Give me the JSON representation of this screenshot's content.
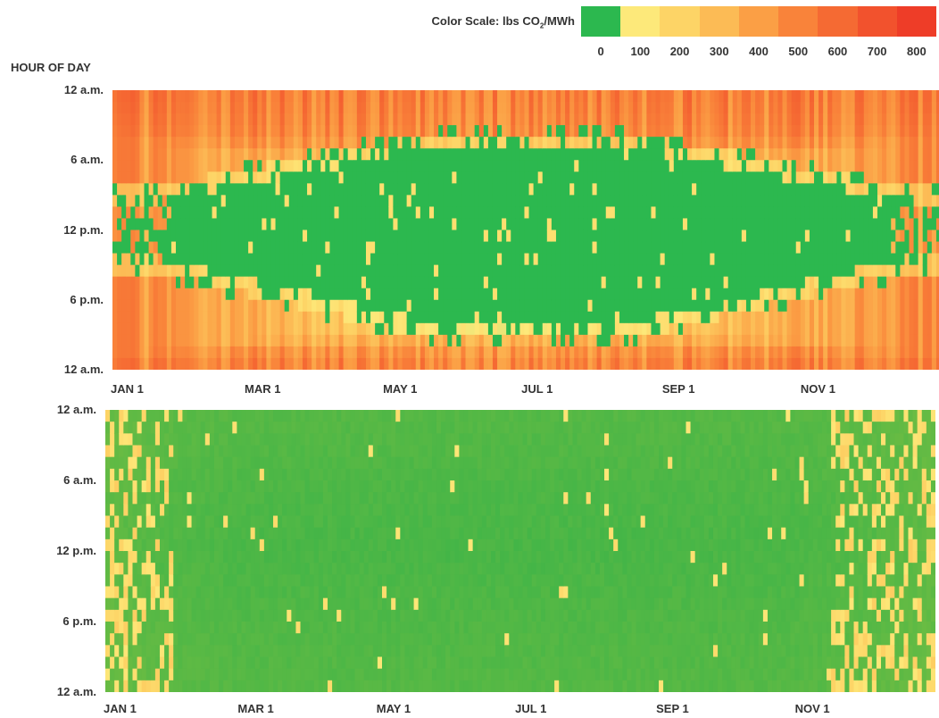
{
  "legend": {
    "title_prefix": "Color Scale: lbs CO",
    "title_sub": "2",
    "title_suffix": "/MWh",
    "ticks": [
      "0",
      "100",
      "200",
      "300",
      "400",
      "500",
      "600",
      "700",
      "800"
    ],
    "colors": [
      "#2cb84f",
      "#fde97a",
      "#fdd466",
      "#fcbb55",
      "#fb9f45",
      "#f9833a",
      "#f56a33",
      "#f2522d",
      "#ee3d28"
    ]
  },
  "yaxis_header": "HOUR OF DAY",
  "chart_data": [
    {
      "type": "heatmap",
      "title": "",
      "xlabel": "",
      "ylabel": "HOUR OF DAY",
      "x_tick_labels": [
        "JAN 1",
        "MAR 1",
        "MAY 1",
        "JUL 1",
        "SEP 1",
        "NOV 1"
      ],
      "y_tick_labels": [
        "12 a.m.",
        "6 a.m.",
        "12 p.m.",
        "6 p.m.",
        "12 a.m."
      ],
      "x_range_days": [
        1,
        365
      ],
      "y_range_hours": [
        0,
        24
      ],
      "value_range": [
        0,
        800
      ],
      "units": "lbs CO2/MWh",
      "hour_profile": {
        "hours": [
          0,
          2,
          4,
          6,
          8,
          10,
          12,
          14,
          16,
          18,
          20,
          22,
          24
        ],
        "values": [
          520,
          500,
          470,
          320,
          180,
          0,
          0,
          0,
          0,
          0,
          120,
          420,
          520
        ]
      },
      "season_profile": {
        "days": [
          1,
          60,
          121,
          182,
          244,
          305,
          365
        ],
        "values": [
          520,
          380,
          250,
          240,
          280,
          380,
          520
        ]
      }
    },
    {
      "type": "heatmap",
      "title": "",
      "xlabel": "",
      "ylabel": "HOUR OF DAY",
      "x_tick_labels": [
        "JAN 1",
        "MAR 1",
        "MAY 1",
        "JUL 1",
        "SEP 1",
        "NOV 1"
      ],
      "y_tick_labels": [
        "12 a.m.",
        "6 a.m.",
        "12 p.m.",
        "6 p.m.",
        "12 a.m."
      ],
      "x_range_days": [
        1,
        365
      ],
      "y_range_hours": [
        0,
        24
      ],
      "value_range": [
        0,
        800
      ],
      "units": "lbs CO2/MWh",
      "hour_profile": {
        "hours": [
          0,
          3,
          6,
          12,
          18,
          21,
          24
        ],
        "values": [
          30,
          25,
          15,
          5,
          20,
          25,
          30
        ]
      },
      "season_profile": {
        "days": [
          1,
          30,
          60,
          182,
          305,
          335,
          365
        ],
        "values": [
          90,
          40,
          20,
          15,
          20,
          50,
          90
        ]
      }
    }
  ]
}
